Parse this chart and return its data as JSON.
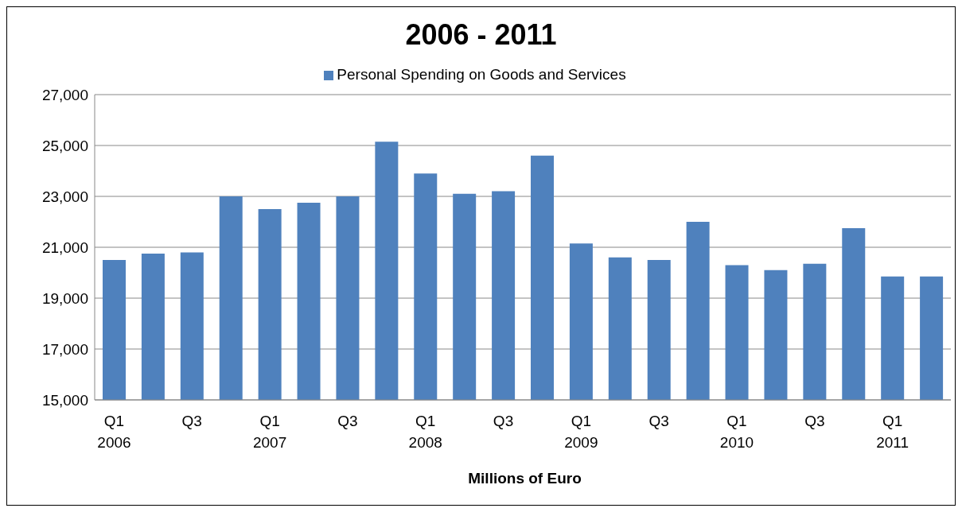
{
  "chart_data": {
    "type": "bar",
    "title": "2006 - 2011",
    "xlabel": "Millions of Euro",
    "categories": [
      "Q1\n2006",
      null,
      "Q3",
      null,
      "Q1\n2007",
      null,
      "Q3",
      null,
      "Q1\n2008",
      null,
      "Q3",
      null,
      "Q1\n2009",
      null,
      "Q3",
      null,
      "Q1\n2010",
      null,
      "Q3",
      null,
      "Q1\n2011",
      null
    ],
    "series": [
      {
        "name": "Personal Spending on Goods and Services",
        "color": "#4f81bd",
        "values": [
          20500,
          20750,
          20800,
          23000,
          22500,
          22750,
          23000,
          25150,
          23900,
          23100,
          23200,
          24600,
          21150,
          20600,
          20500,
          22000,
          20300,
          20100,
          20350,
          21750,
          19850,
          19850
        ]
      }
    ],
    "ylim": [
      15000,
      27000
    ],
    "yticks": [
      {
        "value": 15000,
        "label": "15,000"
      },
      {
        "value": 17000,
        "label": "17,000"
      },
      {
        "value": 19000,
        "label": "19,000"
      },
      {
        "value": 21000,
        "label": "21,000"
      },
      {
        "value": 23000,
        "label": "23,000"
      },
      {
        "value": 25000,
        "label": "25,000"
      },
      {
        "value": 27000,
        "label": "27,000"
      }
    ],
    "grid": "y",
    "legend": "top"
  }
}
